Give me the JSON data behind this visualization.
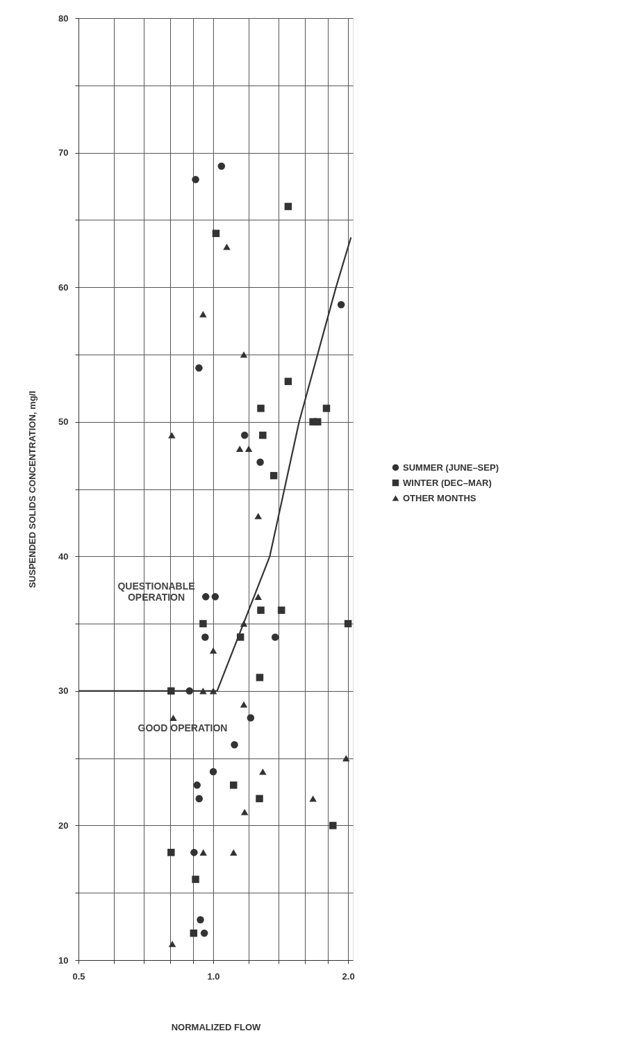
{
  "chart_data": {
    "type": "scatter",
    "xlabel": "NORMALIZED FLOW",
    "ylabel": "SUSPENDED SOLIDS CONCENTRATION, mg/l",
    "log": "x",
    "grid": true,
    "legend": "right",
    "xlim": [
      0.5,
      2.05
    ],
    "xticks": [
      {
        "value": 0.5,
        "label": "0.5"
      },
      {
        "value": 0.6,
        "label": null
      },
      {
        "value": 0.7,
        "label": null
      },
      {
        "value": 0.8,
        "label": null
      },
      {
        "value": 0.9,
        "label": null
      },
      {
        "value": 1.0,
        "label": "1.0"
      },
      {
        "value": 1.2,
        "label": null
      },
      {
        "value": 1.4,
        "label": null
      },
      {
        "value": 1.6,
        "label": null
      },
      {
        "value": 1.8,
        "label": null
      },
      {
        "value": 2.0,
        "label": "2.0"
      }
    ],
    "ylim": [
      10,
      80
    ],
    "yticks": [
      10,
      {
        "value": 15,
        "label": null
      },
      20,
      {
        "value": 25,
        "label": null
      },
      30,
      {
        "value": 35,
        "label": null
      },
      40,
      {
        "value": 45,
        "label": null
      },
      50,
      {
        "value": 55,
        "label": null
      },
      60,
      {
        "value": 65,
        "label": null
      },
      70,
      {
        "value": 75,
        "label": null
      },
      80
    ],
    "series": [
      {
        "name": "SUMMER (JUNE–SEP)",
        "marker": "circle",
        "color": "#333333",
        "x": [
          0.913,
          1.043,
          0.929,
          1.175,
          1.273,
          1.93,
          0.962,
          1.01,
          0.959,
          0.885,
          1.375,
          1.212,
          1.115,
          1.0,
          0.92,
          0.93,
          0.906,
          0.936,
          0.955
        ],
        "values": [
          68,
          69,
          54,
          49,
          47,
          58.7,
          37,
          37,
          34,
          30,
          34,
          28,
          26,
          24,
          23,
          22,
          18,
          13,
          12
        ]
      },
      {
        "name": "WINTER (DEC–MAR)",
        "marker": "square",
        "color": "#333333",
        "x": [
          1.014,
          1.47,
          1.47,
          1.277,
          1.29,
          1.365,
          1.67,
          1.71,
          1.79,
          0.949,
          1.277,
          1.42,
          1.15,
          2.0,
          0.805,
          1.27,
          1.11,
          1.268,
          1.85,
          0.805,
          0.913,
          0.904
        ],
        "values": [
          64,
          66,
          53,
          51,
          49,
          46,
          50,
          50,
          51,
          35,
          36,
          36,
          34,
          35,
          30,
          31,
          23,
          22,
          20,
          18,
          16,
          12
        ]
      },
      {
        "name": "OTHER MONTHS",
        "marker": "triangle",
        "color": "#333333",
        "x": [
          1.072,
          0.949,
          1.17,
          0.808,
          1.146,
          1.2,
          1.26,
          1.26,
          1.17,
          1.0,
          0.949,
          1.0,
          0.814,
          1.17,
          1.29,
          1.175,
          1.67,
          1.98,
          0.95,
          1.11,
          0.81
        ],
        "values": [
          63,
          58,
          55,
          49,
          48,
          48,
          43,
          37,
          35,
          33,
          30,
          30,
          28,
          29,
          24,
          21,
          22,
          25,
          18,
          18,
          11.2
        ]
      },
      {
        "type": "line",
        "marker": "none",
        "color": "#333333",
        "x": [
          0.5,
          1.02,
          1.337,
          1.555,
          1.88,
          2.03
        ],
        "values": [
          30,
          30,
          40,
          50,
          60,
          63.7
        ]
      }
    ],
    "annotations": [
      "QUESTIONABLE\nOPERATION",
      "GOOD OPERATION"
    ]
  }
}
